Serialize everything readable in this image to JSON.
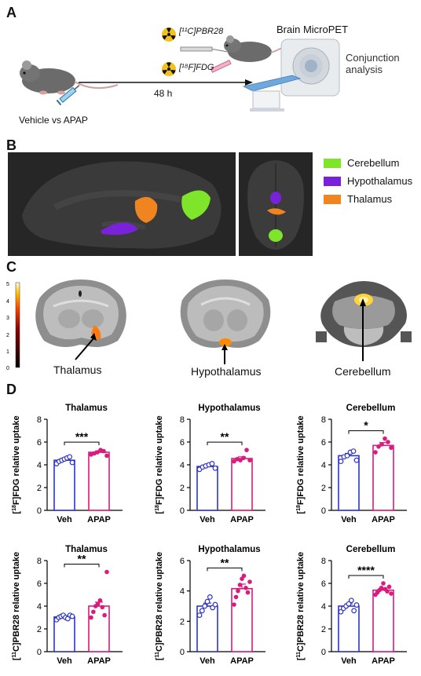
{
  "panels": {
    "a": {
      "letter": "A",
      "tracer1": "[¹¹C]PBR28",
      "tracer2": "[¹⁸F]FDG",
      "scanner": "Brain MicroPET",
      "analysis": "Conjunction analysis",
      "interval": "48 h",
      "treatment": "Vehicle vs APAP"
    },
    "b": {
      "letter": "B",
      "legend": [
        {
          "label": "Cerebellum",
          "color": "#7ee52a"
        },
        {
          "label": "Hypothalamus",
          "color": "#7a22d9"
        },
        {
          "label": "Thalamus",
          "color": "#f08420"
        }
      ]
    },
    "c": {
      "letter": "C",
      "scale_max": "5",
      "scale_ticks": [
        "5",
        "4",
        "3",
        "2",
        "1",
        "0"
      ],
      "regions": [
        "Thalamus",
        "Hypothalamus",
        "Cerebellum"
      ]
    },
    "d": {
      "letter": "D"
    }
  },
  "colors": {
    "veh": "#2f35c4",
    "apap": "#d81b7d",
    "panel_b_bg": "#262626"
  },
  "chart_data": [
    {
      "type": "bar",
      "title": "Thalamus",
      "categories": [
        "Veh",
        "APAP"
      ],
      "values": [
        4.4,
        5.1
      ],
      "errors": [
        0.15,
        0.12
      ],
      "points": [
        [
          4.1,
          4.3,
          4.4,
          4.5,
          4.6,
          4.7,
          4.2
        ],
        [
          4.9,
          5.0,
          5.1,
          5.3,
          5.2,
          4.8
        ]
      ],
      "ylabel": "[18F]FDG relative uptake",
      "ylim": [
        0,
        8
      ],
      "yticks": [
        "0",
        "2",
        "4",
        "6",
        "8"
      ],
      "significance": "***"
    },
    {
      "type": "bar",
      "title": "Hypothalamus",
      "categories": [
        "Veh",
        "APAP"
      ],
      "values": [
        3.85,
        4.55
      ],
      "errors": [
        0.12,
        0.15
      ],
      "points": [
        [
          3.6,
          3.8,
          3.9,
          4.0,
          4.1,
          3.7
        ],
        [
          4.3,
          4.5,
          4.4,
          4.6,
          5.3,
          4.4
        ]
      ],
      "ylabel": "[18F]FDG relative uptake",
      "ylim": [
        0,
        8
      ],
      "yticks": [
        "0",
        "2",
        "4",
        "6",
        "8"
      ],
      "significance": "**"
    },
    {
      "type": "bar",
      "title": "Cerebellum",
      "categories": [
        "Veh",
        "APAP"
      ],
      "values": [
        4.8,
        5.7
      ],
      "errors": [
        0.2,
        0.25
      ],
      "points": [
        [
          4.3,
          4.7,
          4.8,
          5.1,
          5.2,
          4.4
        ],
        [
          5.1,
          5.6,
          5.8,
          6.3,
          6.0,
          5.5
        ]
      ],
      "ylabel": "[18F]FDG relative uptake",
      "ylim": [
        0,
        8
      ],
      "yticks": [
        "0",
        "2",
        "4",
        "6",
        "8"
      ],
      "significance": "*"
    },
    {
      "type": "bar",
      "title": "Thalamus",
      "categories": [
        "Veh",
        "APAP"
      ],
      "values": [
        3.05,
        4.0
      ],
      "errors": [
        0.1,
        0.35
      ],
      "points": [
        [
          2.8,
          3.0,
          3.1,
          3.2,
          3.0,
          2.9,
          3.2,
          3.1
        ],
        [
          3.0,
          3.5,
          4.0,
          4.2,
          4.5,
          3.9,
          3.2,
          7.0
        ]
      ],
      "ylabel": "[11C]PBR28 relative uptake",
      "ylim": [
        0,
        8
      ],
      "yticks": [
        "0",
        "2",
        "4",
        "6",
        "8"
      ],
      "significance": "**"
    },
    {
      "type": "bar",
      "title": "Hypothalamus",
      "categories": [
        "Veh",
        "APAP"
      ],
      "values": [
        3.0,
        4.15
      ],
      "errors": [
        0.2,
        0.3
      ],
      "points": [
        [
          2.4,
          2.7,
          3.0,
          3.3,
          3.6,
          2.9,
          3.1
        ],
        [
          3.1,
          3.6,
          4.0,
          4.4,
          4.8,
          5.0,
          4.2,
          3.9,
          4.6
        ]
      ],
      "ylabel": "[11C]PBR28 relative uptake",
      "ylim": [
        0,
        6
      ],
      "yticks": [
        "0",
        "2",
        "4",
        "6"
      ],
      "significance": "**"
    },
    {
      "type": "bar",
      "title": "Cerebellum",
      "categories": [
        "Veh",
        "APAP"
      ],
      "values": [
        4.0,
        5.4
      ],
      "errors": [
        0.2,
        0.15
      ],
      "points": [
        [
          3.5,
          3.8,
          4.0,
          4.2,
          4.5,
          3.6,
          4.1
        ],
        [
          5.0,
          5.2,
          5.4,
          5.6,
          6.0,
          5.5,
          5.3,
          5.7,
          5.1
        ]
      ],
      "ylabel": "[11C]PBR28 relative uptake",
      "ylim": [
        0,
        8
      ],
      "yticks": [
        "0",
        "2",
        "4",
        "6",
        "8"
      ],
      "significance": "****"
    }
  ]
}
